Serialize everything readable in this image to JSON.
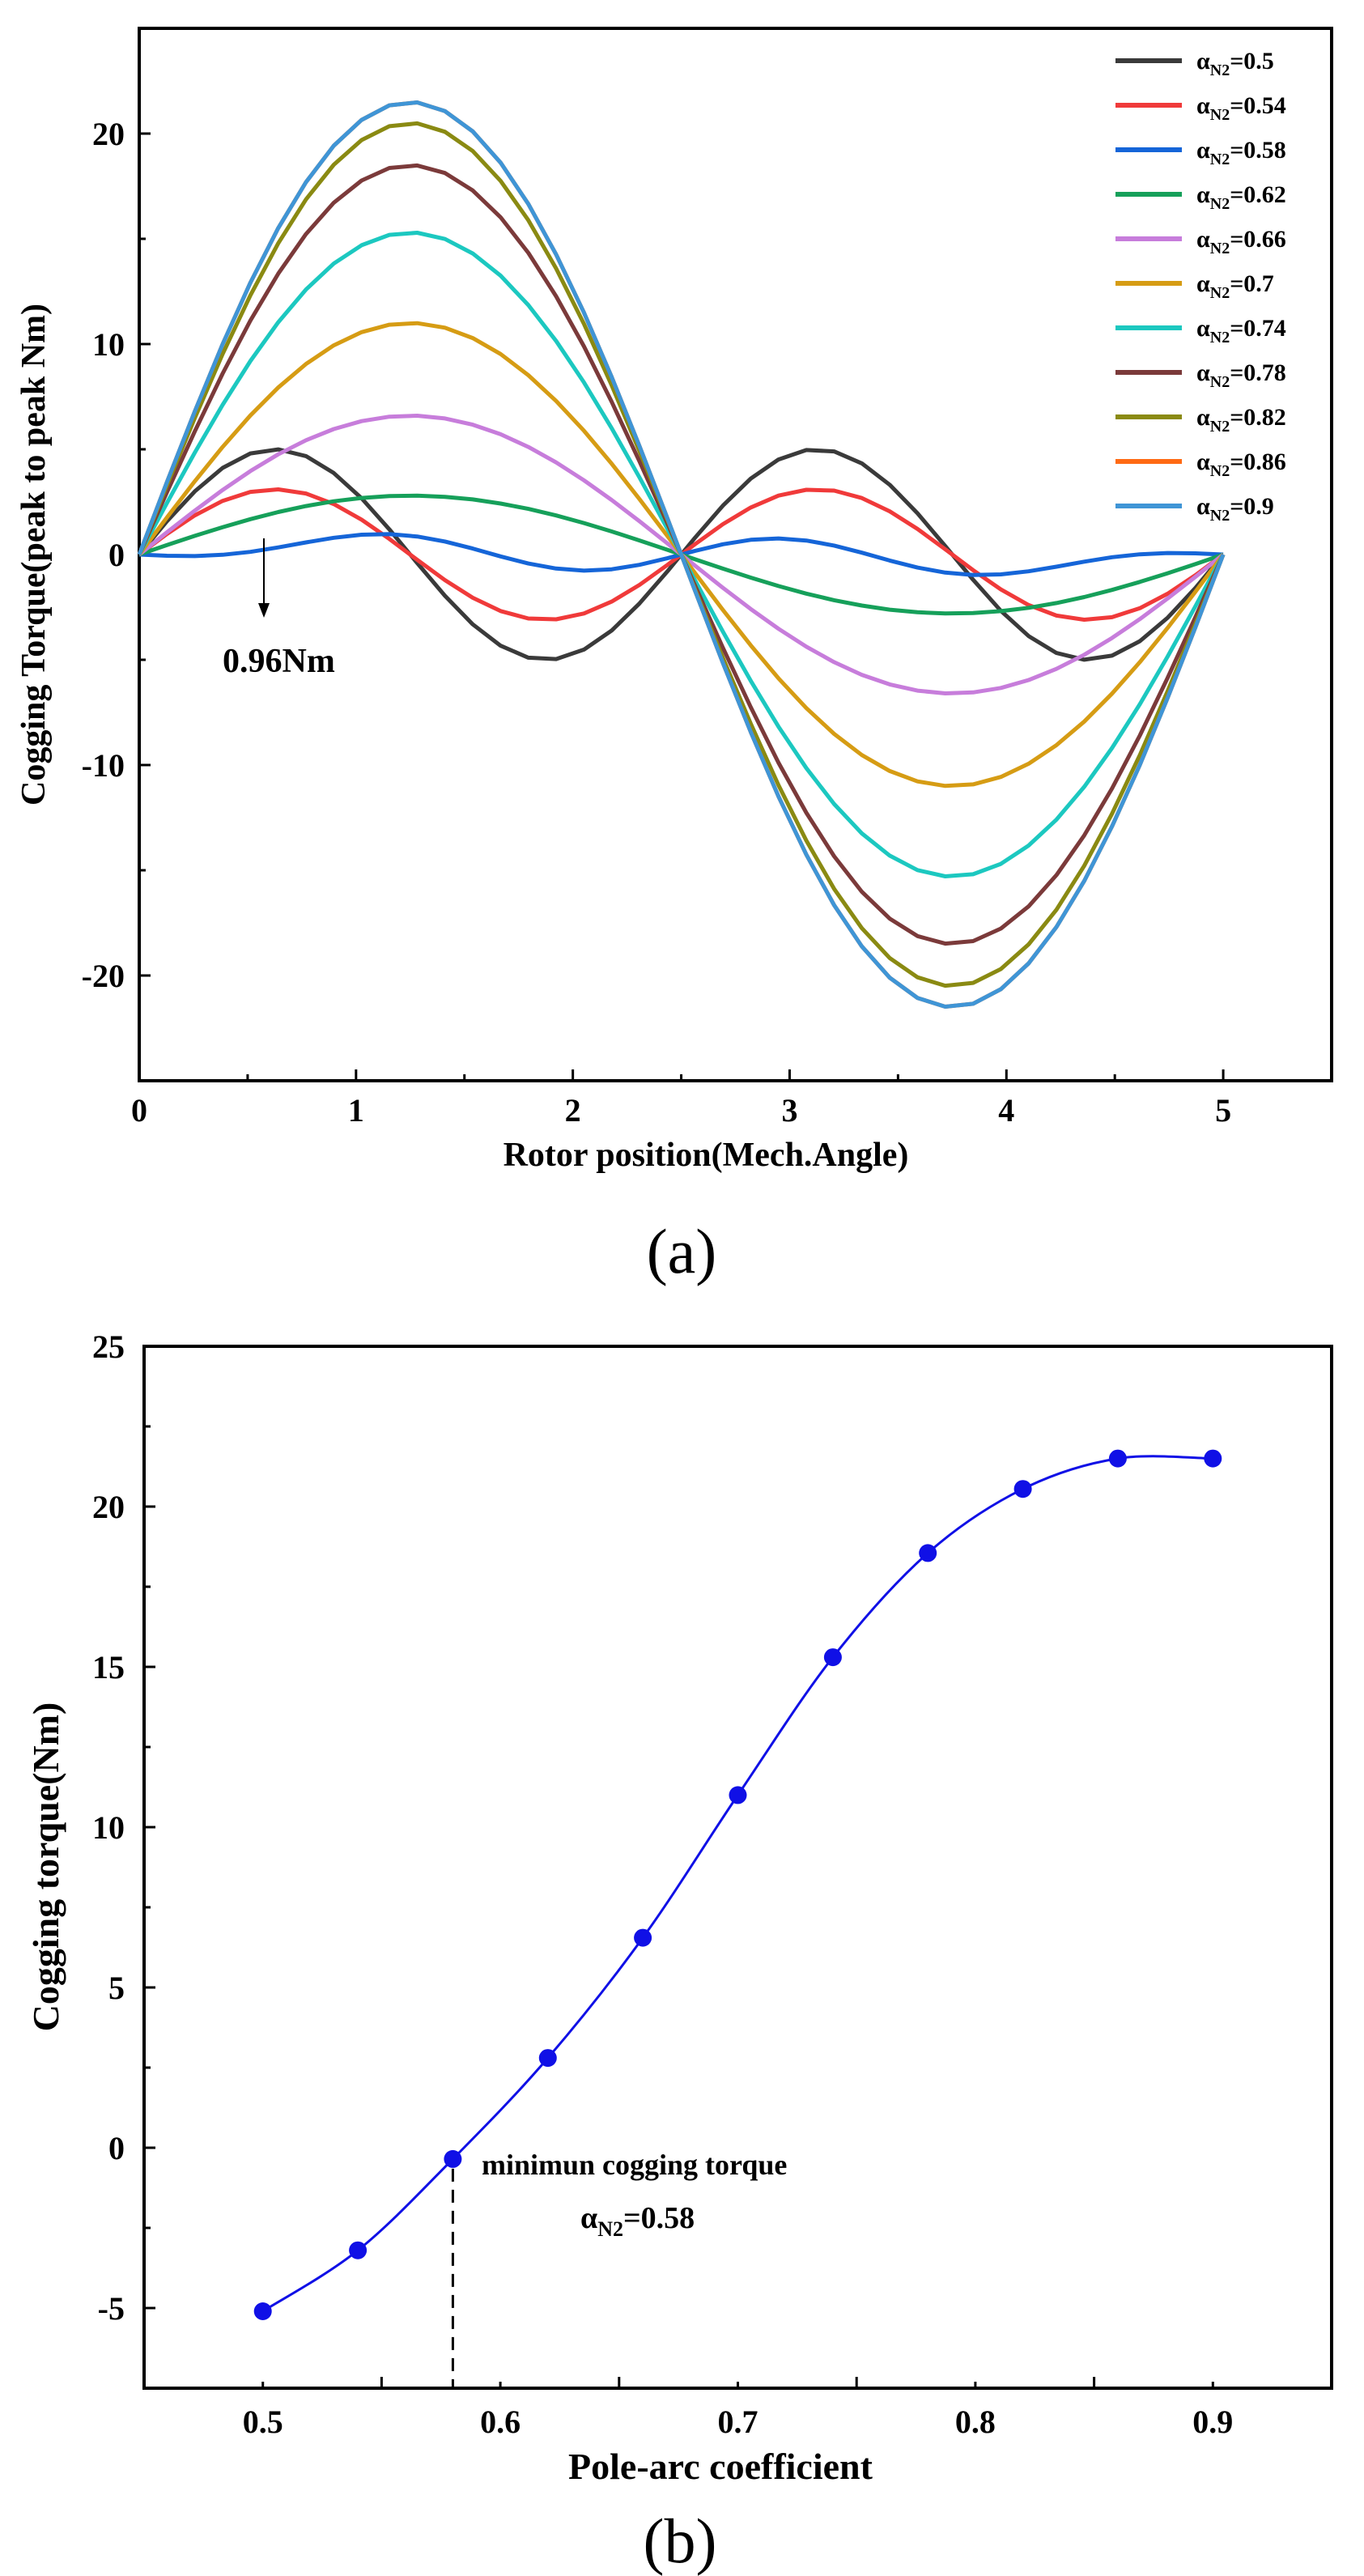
{
  "chart_data": [
    {
      "panel": "(a)",
      "type": "line",
      "xlabel": "Rotor position(Mech.Angle)",
      "ylabel": "Cogging Torque(peak to peak Nm)",
      "xlim": [
        0,
        5.5
      ],
      "ylim": [
        -25,
        25
      ],
      "xticks": [
        "0",
        "1",
        "2",
        "3",
        "4",
        "5"
      ],
      "yticks": [
        "-20",
        "-10",
        "0",
        "10",
        "20"
      ],
      "legend_position": "top-right",
      "annotation": {
        "text": "0.96Nm",
        "x": 0.55,
        "y": 0.96
      },
      "x_range": [
        0,
        5
      ],
      "series": [
        {
          "symbol": "α",
          "sub": "N2",
          "value": "=0.5",
          "name": "αN2=0.5",
          "color": "#3a3a3a",
          "a1": 0,
          "a2": 5.0,
          "a3": 0
        },
        {
          "symbol": "α",
          "sub": "N2",
          "value": "=0.54",
          "name": "αN2=0.54",
          "color": "#f03a3a",
          "a1": 0,
          "a2": 3.1,
          "a3": 0
        },
        {
          "symbol": "α",
          "sub": "N2",
          "value": "=0.58",
          "name": "αN2=0.58",
          "color": "#1565d8",
          "a1": 0.35,
          "a2": 0.45,
          "a3": -0.55
        },
        {
          "symbol": "α",
          "sub": "N2",
          "value": "=0.62",
          "name": "αN2=0.62",
          "color": "#16a05a",
          "a1": 2.8,
          "a2": 0,
          "a3": 0
        },
        {
          "symbol": "α",
          "sub": "N2",
          "value": "=0.66",
          "name": "αN2=0.66",
          "color": "#c77ddb",
          "a1": 6.6,
          "a2": 0,
          "a3": 0
        },
        {
          "symbol": "α",
          "sub": "N2",
          "value": "=0.7",
          "name": "αN2=0.7",
          "color": "#d69c14",
          "a1": 11.0,
          "a2": 0,
          "a3": 0
        },
        {
          "symbol": "α",
          "sub": "N2",
          "value": "=0.74",
          "name": "αN2=0.74",
          "color": "#1cc8c0",
          "a1": 15.3,
          "a2": 0,
          "a3": 0
        },
        {
          "symbol": "α",
          "sub": "N2",
          "value": "=0.78",
          "name": "αN2=0.78",
          "color": "#7b3a3a",
          "a1": 18.5,
          "a2": 0,
          "a3": 0
        },
        {
          "symbol": "α",
          "sub": "N2",
          "value": "=0.82",
          "name": "αN2=0.82",
          "color": "#8a8a12",
          "a1": 20.5,
          "a2": 0,
          "a3": 0
        },
        {
          "symbol": "α",
          "sub": "N2",
          "value": "=0.86",
          "name": "αN2=0.86",
          "color": "#ff6a14",
          "a1": 21.5,
          "a2": 0,
          "a3": 0
        },
        {
          "symbol": "α",
          "sub": "N2",
          "value": "=0.9",
          "name": "αN2=0.9",
          "color": "#3f95d6",
          "a1": 21.5,
          "a2": 0,
          "a3": 0
        }
      ]
    },
    {
      "panel": "(b)",
      "type": "line",
      "xlabel": "Pole-arc coefficient",
      "ylabel": "Cogging torque(Nm)",
      "xlim": [
        0.45,
        0.95
      ],
      "ylim": [
        -7.5,
        25
      ],
      "xticks": [
        "0.5",
        "0.6",
        "0.7",
        "0.8",
        "0.9"
      ],
      "yticks": [
        "25",
        "20",
        "15",
        "10",
        "5",
        "0",
        "-5"
      ],
      "color": "#1010e6",
      "x": [
        0.5,
        0.54,
        0.58,
        0.62,
        0.66,
        0.7,
        0.74,
        0.78,
        0.82,
        0.86,
        0.9
      ],
      "y": [
        -5.1,
        -3.2,
        -0.35,
        2.8,
        6.55,
        11.0,
        15.3,
        18.55,
        20.55,
        21.5,
        21.5
      ],
      "annotation": {
        "text": "minimun cogging torque",
        "symbol": "α",
        "sub": "N2",
        "value": "=0.58",
        "x": 0.58,
        "y": -0.35
      }
    }
  ],
  "captions": {
    "a": "(a)",
    "b": "(b)"
  }
}
